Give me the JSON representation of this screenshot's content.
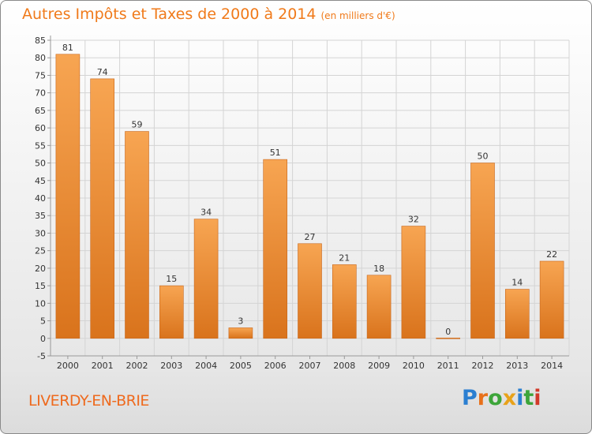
{
  "header": {
    "title": "Autres Impôts et Taxes de 2000 à 2014",
    "subtitle": "(en milliers d'€)"
  },
  "footer": {
    "commune": "LIVERDY-EN-BRIE",
    "brand_letters": [
      {
        "char": "P",
        "color": "#2b7fd1"
      },
      {
        "char": "r",
        "color": "#e8701a"
      },
      {
        "char": "o",
        "color": "#3da53a"
      },
      {
        "char": "x",
        "color": "#e8a21a"
      },
      {
        "char": "i",
        "color": "#2b7fd1"
      },
      {
        "char": "t",
        "color": "#3da53a"
      },
      {
        "char": "i",
        "color": "#d23a2a"
      }
    ]
  },
  "colors": {
    "bar_light": "#f7a552",
    "bar_dark": "#d9731c",
    "title": "#f07a1a"
  },
  "chart_data": {
    "type": "bar",
    "title": "Autres Impôts et Taxes de 2000 à 2014",
    "subtitle": "(en milliers d'€)",
    "categories": [
      "2000",
      "2001",
      "2002",
      "2003",
      "2004",
      "2005",
      "2006",
      "2007",
      "2008",
      "2009",
      "2010",
      "2011",
      "2012",
      "2013",
      "2014"
    ],
    "values": [
      81,
      74,
      59,
      15,
      34,
      3,
      51,
      27,
      21,
      18,
      32,
      0,
      50,
      14,
      22
    ],
    "ylim": [
      -5,
      85
    ],
    "yticks": [
      -5,
      0,
      5,
      10,
      15,
      20,
      25,
      30,
      35,
      40,
      45,
      50,
      55,
      60,
      65,
      70,
      75,
      80,
      85
    ],
    "grid": true
  }
}
